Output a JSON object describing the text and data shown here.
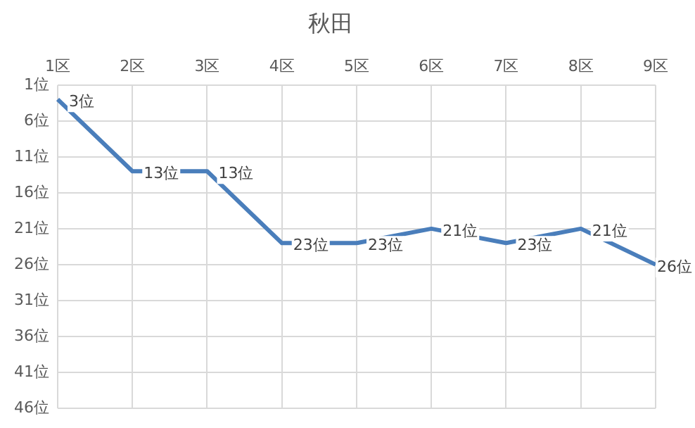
{
  "chart_data": {
    "type": "line",
    "title": "秋田",
    "categories": [
      "1区",
      "2区",
      "3区",
      "4区",
      "5区",
      "6区",
      "7区",
      "8区",
      "9区"
    ],
    "series": [
      {
        "color": "#4a7ebb",
        "values": [
          3,
          13,
          13,
          23,
          23,
          21,
          23,
          21,
          26
        ],
        "value_labels": [
          "3位",
          "13位",
          "13位",
          "23位",
          "23位",
          "21位",
          "23位",
          "21位",
          "26位"
        ]
      }
    ],
    "ylim": [
      46,
      1
    ],
    "yticks": [
      {
        "value": 1,
        "label": "1位"
      },
      {
        "value": 6,
        "label": "6位"
      },
      {
        "value": 11,
        "label": "11位"
      },
      {
        "value": 16,
        "label": "16位"
      },
      {
        "value": 21,
        "label": "21位"
      },
      {
        "value": 26,
        "label": "26位"
      },
      {
        "value": 31,
        "label": "31位"
      },
      {
        "value": 36,
        "label": "36位"
      },
      {
        "value": 41,
        "label": "41位"
      },
      {
        "value": 46,
        "label": "46位"
      }
    ],
    "grid": true,
    "marker": "none",
    "line_style": "solid"
  }
}
